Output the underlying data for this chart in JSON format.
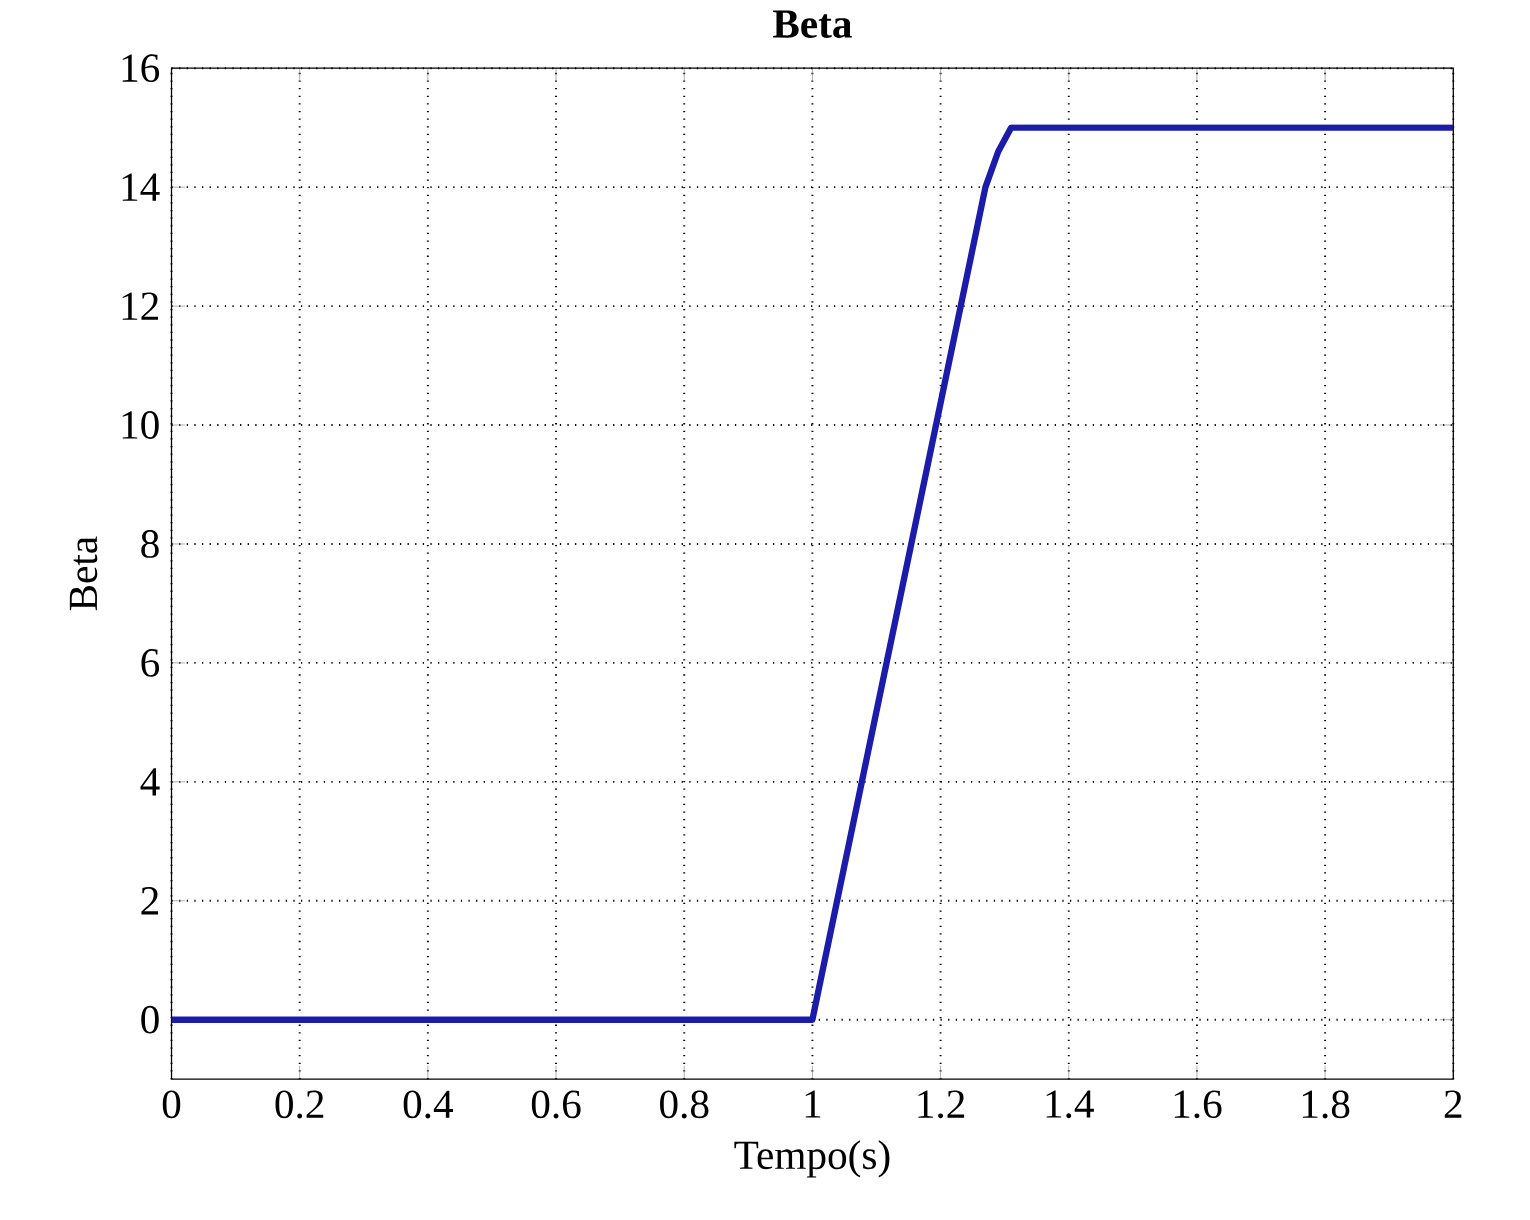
{
  "chart_data": {
    "type": "line",
    "title": "Beta",
    "xlabel": "Tempo(s)",
    "ylabel": "Beta",
    "x": [
      0,
      1,
      1.27,
      1.29,
      1.31,
      2
    ],
    "series": [
      {
        "color": "#1c1caa",
        "values": [
          0,
          0,
          14.0,
          14.6,
          15,
          15
        ]
      }
    ],
    "xlim": [
      0,
      2
    ],
    "xticks": [
      0,
      0.2,
      0.4,
      0.6,
      0.8,
      1,
      1.2,
      1.4,
      1.6,
      1.8,
      2
    ],
    "ylim": [
      -1,
      16
    ],
    "yticks": [
      0,
      2,
      4,
      6,
      8,
      10,
      12,
      14,
      16
    ],
    "grid": true,
    "marker": "none",
    "line_style": "solid"
  }
}
